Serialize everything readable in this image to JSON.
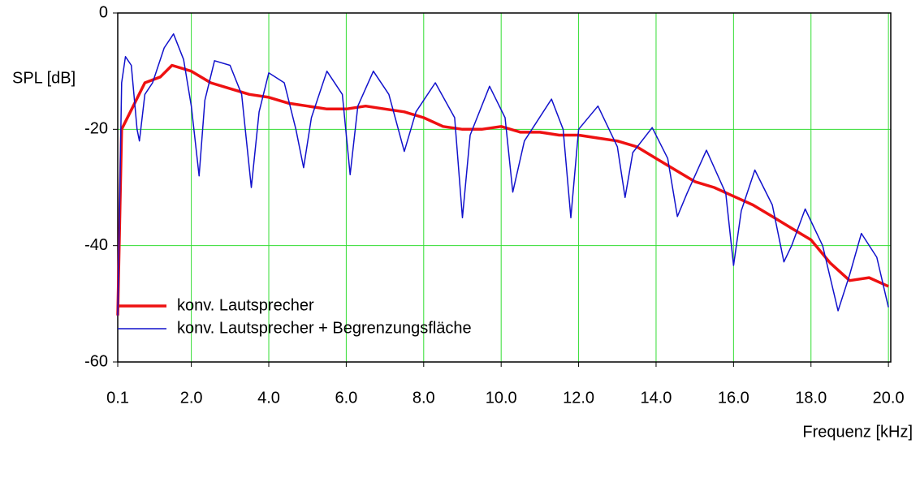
{
  "chart_data": {
    "type": "line",
    "ylabel": "SPL [dB]",
    "xlabel": "Frequenz [kHz]",
    "xlim": [
      0.1,
      20.06
    ],
    "ylim": [
      -60,
      0
    ],
    "xticks": [
      0.1,
      {
        "value": 2,
        "label": "2.0"
      },
      {
        "value": 4,
        "label": "4.0"
      },
      {
        "value": 6,
        "label": "6.0"
      },
      {
        "value": 8,
        "label": "8.0"
      },
      {
        "value": 10,
        "label": "10.0"
      },
      {
        "value": 12,
        "label": "12.0"
      },
      {
        "value": 14,
        "label": "14.0"
      },
      {
        "value": 16,
        "label": "16.0"
      },
      {
        "value": 18,
        "label": "18.0"
      },
      {
        "value": 20,
        "label": "20.0"
      }
    ],
    "yticks": [
      -60,
      -40,
      -20,
      0
    ],
    "grid": true,
    "grid_color": "#33dd33",
    "series": [
      {
        "name": "konv. Lautsprecher",
        "color": "#ee1111",
        "width": 3.5,
        "x": [
          0.1,
          0.2,
          0.5,
          0.8,
          1.2,
          1.5,
          2.0,
          2.5,
          3.0,
          3.5,
          4.0,
          4.5,
          5.0,
          5.5,
          6.0,
          6.5,
          7.0,
          7.5,
          8.0,
          8.5,
          9.0,
          9.5,
          10.0,
          10.5,
          11.0,
          11.5,
          12.0,
          12.5,
          13.0,
          13.5,
          14.0,
          14.5,
          15.0,
          15.5,
          16.0,
          16.5,
          17.0,
          17.5,
          18.0,
          18.5,
          19.0,
          19.5,
          20.0
        ],
        "values": [
          -52,
          -20,
          -16,
          -12,
          -11,
          -9,
          -10,
          -12,
          -13,
          -14,
          -14.5,
          -15.5,
          -16,
          -16.5,
          -16.5,
          -16,
          -16.5,
          -17,
          -18,
          -19.5,
          -20,
          -20,
          -19.5,
          -20.5,
          -20.5,
          -21,
          -21,
          -21.5,
          -22,
          -23,
          -25,
          -27,
          -29,
          -30,
          -31.5,
          -33,
          -35,
          -37,
          -39,
          -43,
          -46,
          -45.5,
          -47
        ]
      },
      {
        "name": "konv. Lautsprecher + Begrenzungsfläche",
        "color": "#1111cc",
        "width": 1.5,
        "x": [
          0.1,
          0.2,
          0.3,
          0.45,
          0.6,
          0.66,
          0.8,
          1.0,
          1.3,
          1.54,
          1.8,
          2.0,
          2.2,
          2.35,
          2.6,
          3.0,
          3.3,
          3.55,
          3.75,
          4.0,
          4.4,
          4.7,
          4.9,
          5.1,
          5.5,
          5.9,
          6.1,
          6.3,
          6.7,
          7.1,
          7.5,
          7.8,
          8.3,
          8.8,
          9.0,
          9.2,
          9.7,
          10.1,
          10.3,
          10.6,
          11.3,
          11.6,
          11.8,
          12.0,
          12.5,
          13.0,
          13.2,
          13.4,
          13.9,
          14.3,
          14.55,
          14.8,
          15.3,
          15.8,
          16.0,
          16.2,
          16.55,
          17.0,
          17.3,
          17.5,
          17.85,
          18.3,
          18.7,
          19.0,
          19.3,
          19.7,
          20.0
        ],
        "values": [
          -52,
          -12,
          -7.5,
          -9,
          -20,
          -22,
          -14,
          -12,
          -6,
          -3.6,
          -8,
          -16,
          -28,
          -15,
          -8.2,
          -9,
          -14,
          -30,
          -17,
          -10.3,
          -12,
          -20,
          -26.6,
          -18,
          -10,
          -14,
          -27.8,
          -16,
          -10,
          -14,
          -23.8,
          -17,
          -12,
          -18,
          -35.2,
          -21,
          -12.6,
          -18,
          -30.8,
          -22,
          -14.8,
          -20,
          -35.2,
          -20,
          -16,
          -23,
          -31.7,
          -24,
          -19.7,
          -25,
          -35,
          -31,
          -23.6,
          -31,
          -43.4,
          -34,
          -27,
          -33,
          -42.8,
          -40,
          -33.7,
          -40,
          -51.2,
          -45,
          -37.9,
          -42,
          -50.6
        ]
      }
    ]
  }
}
